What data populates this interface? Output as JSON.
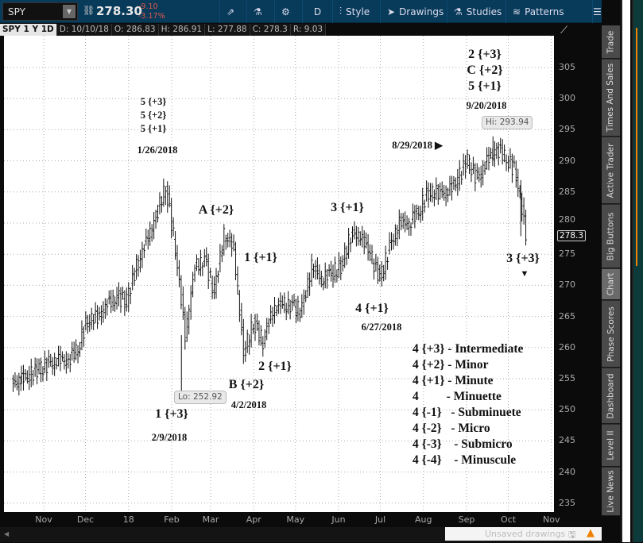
{
  "toolbar": {
    "symbol": "SPY",
    "last": "278.30",
    "change": "-9.10",
    "change_pct": "-3.17%",
    "aggregation": "D",
    "style": "Style",
    "drawings": "Drawings",
    "studies": "Studies",
    "patterns": "Patterns"
  },
  "info": {
    "title": "SPY 1 Y 1D",
    "date": "D: 10/10/18",
    "open": "O: 286.83",
    "high": "H: 286.91",
    "low": "L: 277.88",
    "close": "C: 278.3",
    "range": "R: 9.03"
  },
  "sidebar": {
    "tabs": [
      "Trade",
      "Times And Sales",
      "Active Trader",
      "Big Buttons",
      "Chart",
      "Phase Scores",
      "Dashboard",
      "Level II",
      "Live News"
    ],
    "selected": "Chart"
  },
  "status": {
    "unsaved": "Unsaved drawings"
  },
  "colors": {
    "toolbar": "#083a5a",
    "bars": "#111111",
    "negative": "#e05a4a",
    "warning": "#f08000"
  },
  "chart_data": {
    "type": "bar",
    "symbol": "SPY",
    "ylim": [
      233,
      309
    ],
    "y_ticks": [
      235,
      240,
      245,
      250,
      255,
      260,
      265,
      270,
      275,
      280,
      285,
      290,
      295,
      300,
      305
    ],
    "x_ticks": [
      "Nov",
      "Dec",
      "18",
      "Feb",
      "Mar",
      "Apr",
      "May",
      "Jun",
      "Jul",
      "Aug",
      "Sep",
      "Oct",
      "Nov"
    ],
    "last_price_label": "278.3",
    "hi_label": "Hi: 293.94",
    "lo_label": "Lo: 252.92",
    "weekly_closes": [
      [
        "2017-10-10",
        254.9
      ],
      [
        "2017-10-16",
        255.5
      ],
      [
        "2017-10-23",
        256.5
      ],
      [
        "2017-10-30",
        257.3
      ],
      [
        "2017-11-06",
        258
      ],
      [
        "2017-11-13",
        258
      ],
      [
        "2017-11-20",
        260
      ],
      [
        "2017-11-27",
        264.5
      ],
      [
        "2017-12-04",
        265
      ],
      [
        "2017-12-11",
        267
      ],
      [
        "2017-12-18",
        268
      ],
      [
        "2017-12-25",
        267.5
      ],
      [
        "2018-01-01",
        273
      ],
      [
        "2018-01-08",
        277
      ],
      [
        "2018-01-15",
        281
      ],
      [
        "2018-01-22",
        286
      ],
      [
        "2018-01-29",
        276
      ],
      [
        "2018-02-05",
        262
      ],
      [
        "2018-02-12",
        273
      ],
      [
        "2018-02-19",
        274
      ],
      [
        "2018-02-26",
        269
      ],
      [
        "2018-03-05",
        278
      ],
      [
        "2018-03-12",
        276
      ],
      [
        "2018-03-19",
        259
      ],
      [
        "2018-03-26",
        264
      ],
      [
        "2018-04-02",
        261
      ],
      [
        "2018-04-09",
        266
      ],
      [
        "2018-04-16",
        267
      ],
      [
        "2018-04-23",
        266.5
      ],
      [
        "2018-04-30",
        266
      ],
      [
        "2018-05-07",
        273
      ],
      [
        "2018-05-14",
        271
      ],
      [
        "2018-05-21",
        272
      ],
      [
        "2018-05-28",
        273
      ],
      [
        "2018-06-04",
        278
      ],
      [
        "2018-06-11",
        278
      ],
      [
        "2018-06-18",
        275
      ],
      [
        "2018-06-25",
        271
      ],
      [
        "2018-07-02",
        276
      ],
      [
        "2018-07-09",
        280
      ],
      [
        "2018-07-16",
        280
      ],
      [
        "2018-07-23",
        282
      ],
      [
        "2018-07-30",
        285
      ],
      [
        "2018-08-06",
        285
      ],
      [
        "2018-08-13",
        285
      ],
      [
        "2018-08-20",
        287
      ],
      [
        "2018-08-27",
        290
      ],
      [
        "2018-09-03",
        287
      ],
      [
        "2018-09-10",
        290
      ],
      [
        "2018-09-17",
        292
      ],
      [
        "2018-09-24",
        290.5
      ],
      [
        "2018-10-01",
        288
      ],
      [
        "2018-10-08",
        278.3
      ]
    ],
    "annotations": {
      "jan_top": [
        "5 {+3}",
        "5 {+2}",
        "5 {+1}"
      ],
      "jan_date": "1/26/2018",
      "a": "A {+2}",
      "one_minute": "1 {+1}",
      "three_minute": "3 {+1}",
      "sep_top": [
        "2 {+3}",
        "C {+2}",
        "5 {+1}"
      ],
      "sep_date": "9/20/2018",
      "aug_date": "8/29/2018",
      "three_int": "3 {+3}",
      "four_minute": "4 {+1}",
      "jun_date": "6/27/2018",
      "two_minute": "2 {+1}",
      "b": "B {+2}",
      "apr_date": "4/2/2018",
      "one_int": "1 {+3}",
      "feb_date": "2/9/2018"
    },
    "legend": [
      "4 {+3} - Intermediate",
      "4 {+2} - Minor",
      "4 {+1} - Minute",
      "4         - Minuette",
      "4 {-1}   - Subminuete",
      "4 {-2}   - Micro",
      "4 {-3}    - Submicro",
      "4 {-4}    - Minuscule"
    ]
  }
}
